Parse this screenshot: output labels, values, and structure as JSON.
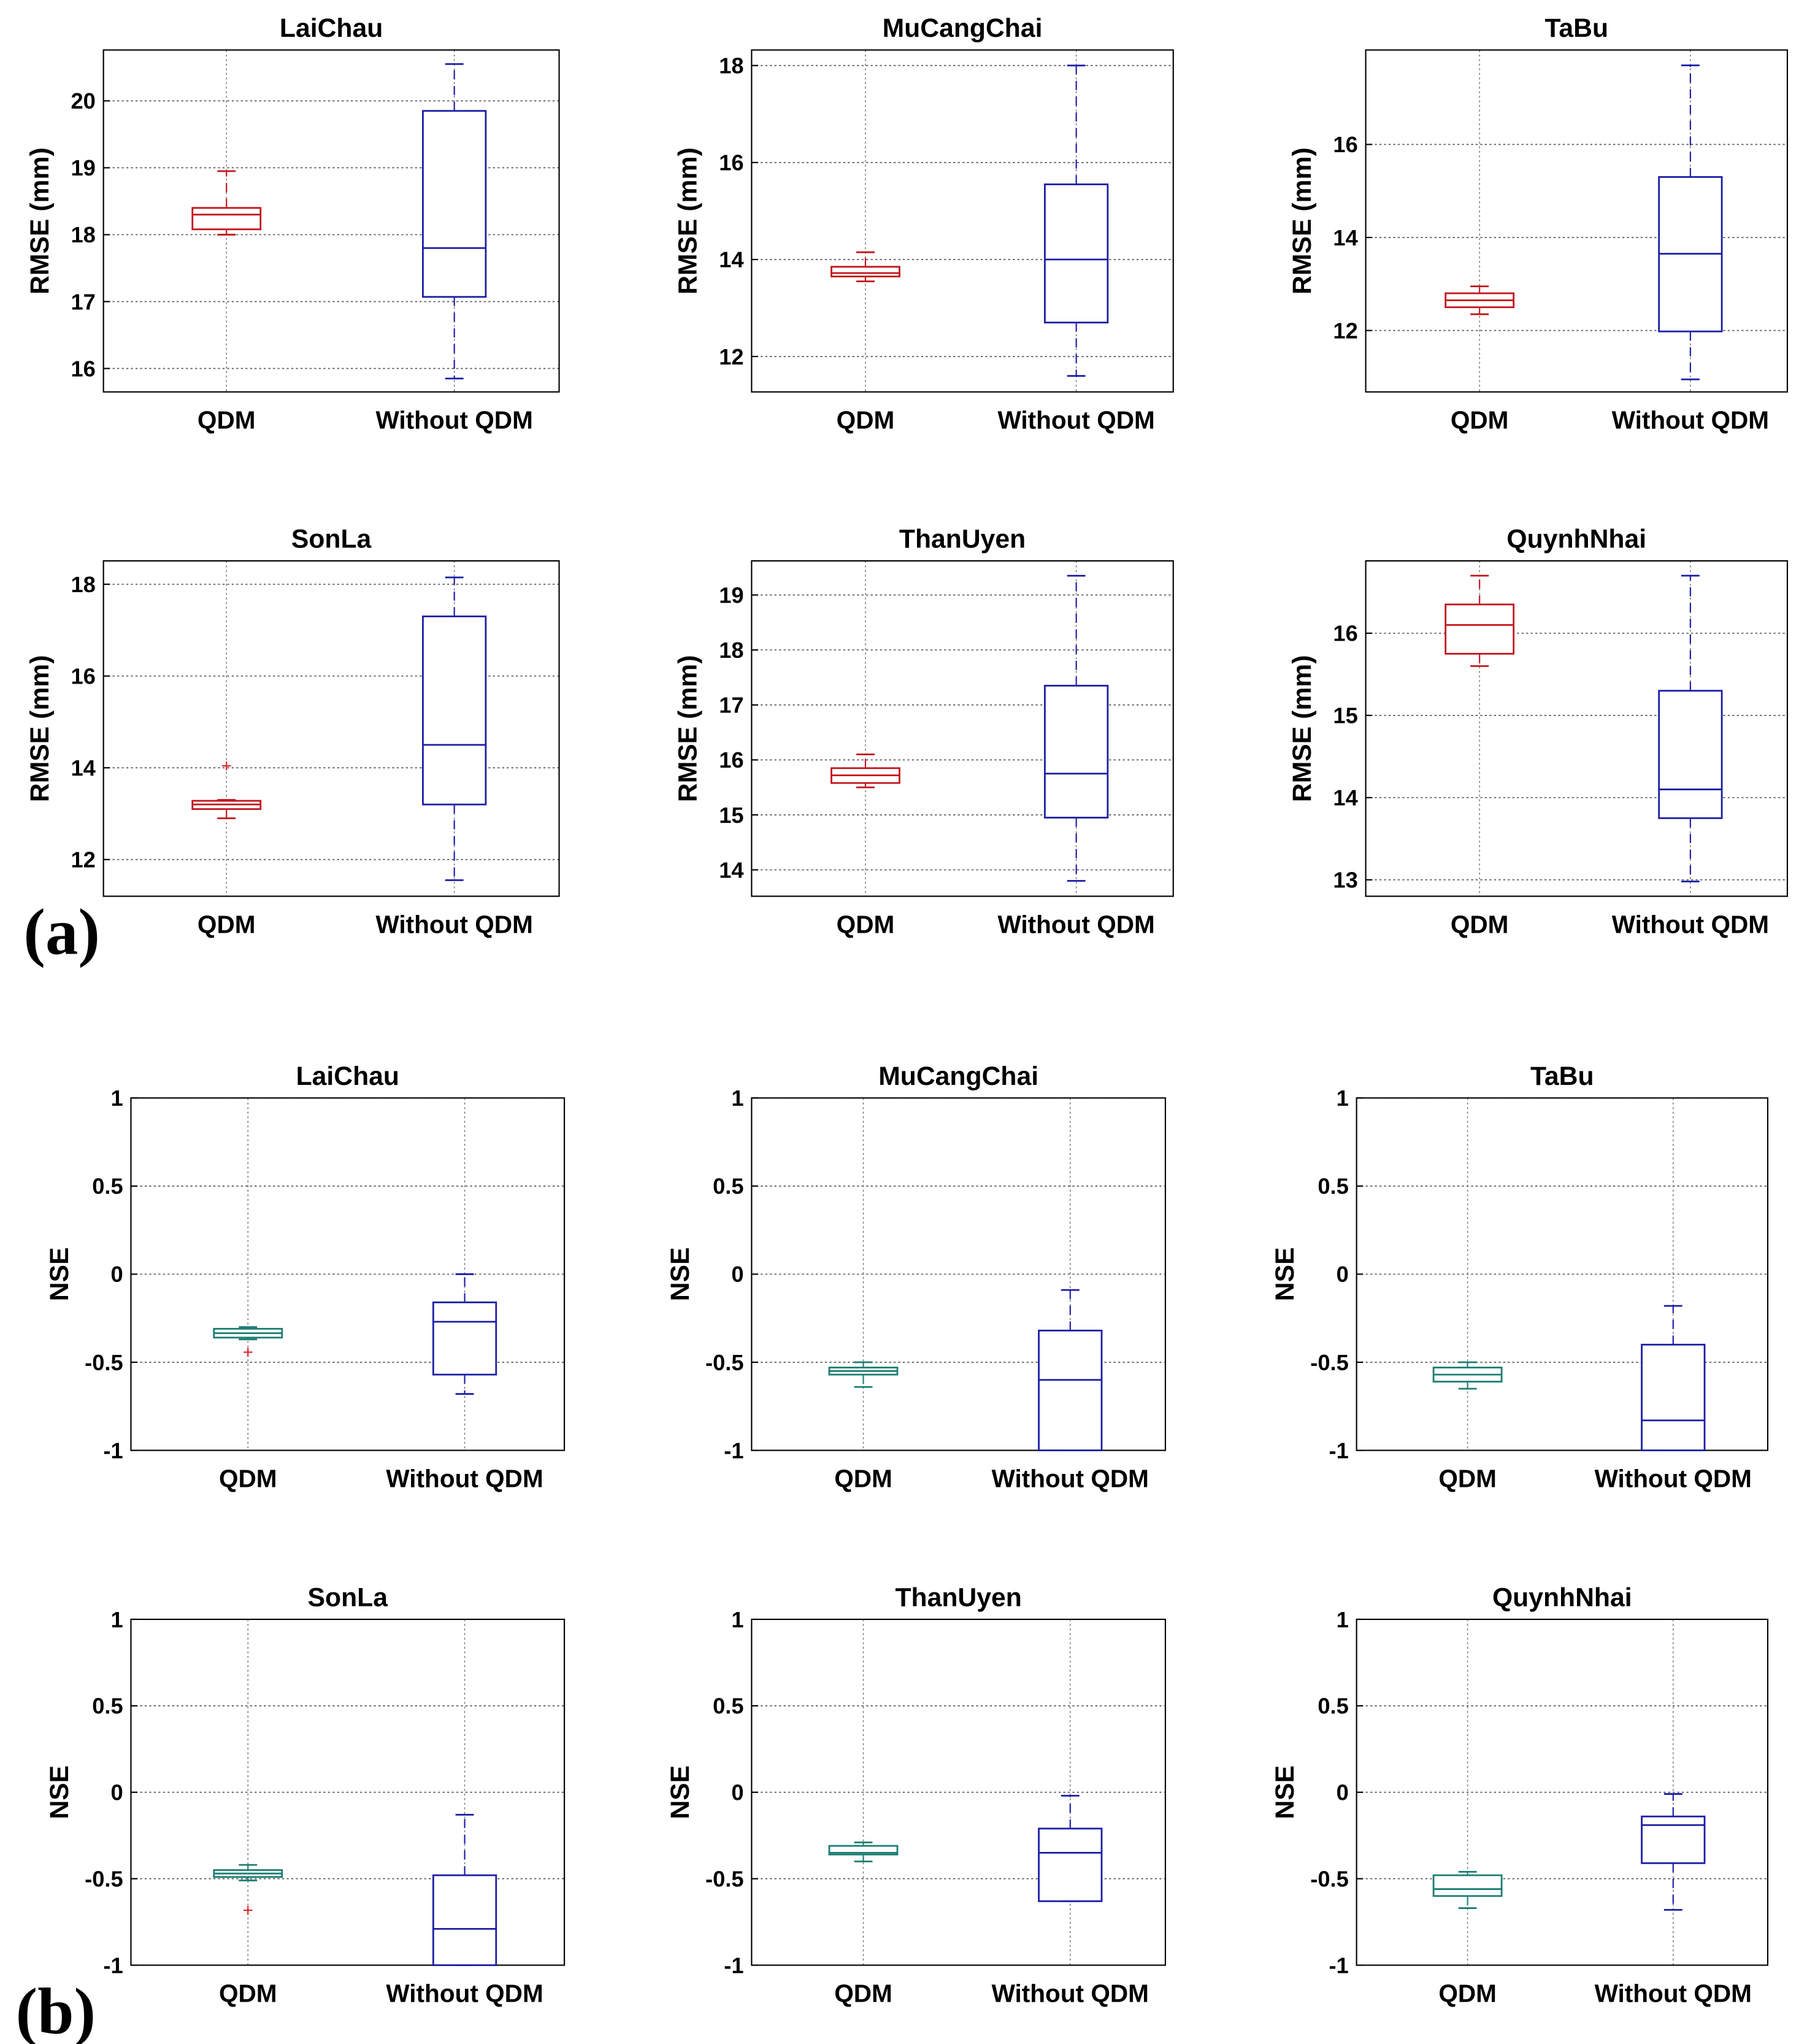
{
  "chart_data": [
    {
      "type": "box",
      "group": "a",
      "title": "LaiChau",
      "ylabel": "RMSE (mm)",
      "ylim": [
        15.65,
        20.76
      ],
      "yticks": [
        16,
        17,
        18,
        19,
        20
      ],
      "categories": [
        "QDM",
        "Without QDM"
      ],
      "series": [
        {
          "name": "QDM",
          "min": 18.0,
          "q1": 18.08,
          "median": 18.3,
          "q3": 18.4,
          "max": 18.95,
          "outliers": []
        },
        {
          "name": "Without QDM",
          "min": 15.85,
          "q1": 17.07,
          "median": 17.8,
          "q3": 19.85,
          "max": 20.55,
          "outliers": []
        }
      ]
    },
    {
      "type": "box",
      "group": "a",
      "title": "MuCangChai",
      "ylabel": "RMSE (mm)",
      "ylim": [
        11.27,
        18.32
      ],
      "yticks": [
        12,
        14,
        16,
        18
      ],
      "categories": [
        "QDM",
        "Without QDM"
      ],
      "series": [
        {
          "name": "QDM",
          "min": 13.55,
          "q1": 13.65,
          "median": 13.72,
          "q3": 13.85,
          "max": 14.15,
          "outliers": []
        },
        {
          "name": "Without QDM",
          "min": 11.6,
          "q1": 12.7,
          "median": 14.0,
          "q3": 15.55,
          "max": 18.0,
          "outliers": []
        }
      ]
    },
    {
      "type": "box",
      "group": "a",
      "title": "TaBu",
      "ylabel": "RMSE (mm)",
      "ylim": [
        10.68,
        18.03
      ],
      "yticks": [
        12,
        14,
        16
      ],
      "categories": [
        "QDM",
        "Without QDM"
      ],
      "series": [
        {
          "name": "QDM",
          "min": 12.35,
          "q1": 12.5,
          "median": 12.65,
          "q3": 12.8,
          "max": 12.95,
          "outliers": []
        },
        {
          "name": "Without QDM",
          "min": 10.95,
          "q1": 11.98,
          "median": 13.65,
          "q3": 15.3,
          "max": 17.7,
          "outliers": []
        }
      ]
    },
    {
      "type": "box",
      "group": "a",
      "title": "SonLa",
      "ylabel": "RMSE (mm)",
      "ylim": [
        11.2,
        18.51
      ],
      "yticks": [
        12,
        14,
        16,
        18
      ],
      "categories": [
        "QDM",
        "Without QDM"
      ],
      "series": [
        {
          "name": "QDM",
          "min": 12.9,
          "q1": 13.1,
          "median": 13.2,
          "q3": 13.28,
          "max": 13.3,
          "outliers": [
            14.05
          ]
        },
        {
          "name": "Without QDM",
          "min": 11.55,
          "q1": 13.2,
          "median": 14.5,
          "q3": 17.3,
          "max": 18.15,
          "outliers": []
        }
      ]
    },
    {
      "type": "box",
      "group": "a",
      "title": "ThanUyen",
      "ylabel": "RMSE (mm)",
      "ylim": [
        13.52,
        19.62
      ],
      "yticks": [
        14,
        15,
        16,
        17,
        18,
        19
      ],
      "categories": [
        "QDM",
        "Without QDM"
      ],
      "series": [
        {
          "name": "QDM",
          "min": 15.5,
          "q1": 15.58,
          "median": 15.72,
          "q3": 15.85,
          "max": 16.1,
          "outliers": []
        },
        {
          "name": "Without QDM",
          "min": 13.8,
          "q1": 14.95,
          "median": 15.75,
          "q3": 17.35,
          "max": 19.35,
          "outliers": []
        }
      ]
    },
    {
      "type": "box",
      "group": "a",
      "title": "QuynhNhai",
      "ylabel": "RMSE (mm)",
      "ylim": [
        12.8,
        16.88
      ],
      "yticks": [
        13,
        14,
        15,
        16
      ],
      "categories": [
        "QDM",
        "Without QDM"
      ],
      "series": [
        {
          "name": "QDM",
          "min": 15.6,
          "q1": 15.75,
          "median": 16.1,
          "q3": 16.35,
          "max": 16.7,
          "outliers": []
        },
        {
          "name": "Without QDM",
          "min": 12.98,
          "q1": 13.75,
          "median": 14.1,
          "q3": 15.3,
          "max": 16.7,
          "outliers": []
        }
      ]
    },
    {
      "type": "box",
      "group": "b",
      "title": "LaiChau",
      "ylabel": "NSE",
      "ylim": [
        -1,
        1
      ],
      "yticks": [
        -1,
        -0.5,
        0,
        0.5,
        1
      ],
      "categories": [
        "QDM",
        "Without QDM"
      ],
      "series": [
        {
          "name": "QDM",
          "min": -0.37,
          "q1": -0.36,
          "median": -0.335,
          "q3": -0.31,
          "max": -0.3,
          "outliers": [
            -0.44
          ]
        },
        {
          "name": "Without QDM",
          "min": -0.68,
          "q1": -0.57,
          "median": -0.27,
          "q3": -0.16,
          "max": 0.0,
          "outliers": []
        }
      ]
    },
    {
      "type": "box",
      "group": "b",
      "title": "MuCangChai",
      "ylabel": "NSE",
      "ylim": [
        -1,
        1
      ],
      "yticks": [
        -1,
        -0.5,
        0,
        0.5,
        1
      ],
      "categories": [
        "QDM",
        "Without QDM"
      ],
      "series": [
        {
          "name": "QDM",
          "min": -0.64,
          "q1": -0.57,
          "median": -0.55,
          "q3": -0.53,
          "max": -0.5,
          "outliers": []
        },
        {
          "name": "Without QDM",
          "min": -1.0,
          "q1": -1.0,
          "median": -0.6,
          "q3": -0.32,
          "max": -0.09,
          "outliers": []
        }
      ]
    },
    {
      "type": "box",
      "group": "b",
      "title": "TaBu",
      "ylabel": "NSE",
      "ylim": [
        -1,
        1
      ],
      "yticks": [
        -1,
        -0.5,
        0,
        0.5,
        1
      ],
      "categories": [
        "QDM",
        "Without QDM"
      ],
      "series": [
        {
          "name": "QDM",
          "min": -0.65,
          "q1": -0.61,
          "median": -0.57,
          "q3": -0.53,
          "max": -0.5,
          "outliers": []
        },
        {
          "name": "Without QDM",
          "min": -1.0,
          "q1": -1.0,
          "median": -0.83,
          "q3": -0.4,
          "max": -0.18,
          "outliers": []
        }
      ]
    },
    {
      "type": "box",
      "group": "b",
      "title": "SonLa",
      "ylabel": "NSE",
      "ylim": [
        -1,
        1
      ],
      "yticks": [
        -1,
        -0.5,
        0,
        0.5,
        1
      ],
      "categories": [
        "QDM",
        "Without QDM"
      ],
      "series": [
        {
          "name": "QDM",
          "min": -0.51,
          "q1": -0.49,
          "median": -0.47,
          "q3": -0.45,
          "max": -0.42,
          "outliers": [
            -0.68
          ]
        },
        {
          "name": "Without QDM",
          "min": -1.0,
          "q1": -1.0,
          "median": -0.79,
          "q3": -0.48,
          "max": -0.13,
          "outliers": []
        }
      ]
    },
    {
      "type": "box",
      "group": "b",
      "title": "ThanUyen",
      "ylabel": "NSE",
      "ylim": [
        -1,
        1
      ],
      "yticks": [
        -1,
        -0.5,
        0,
        0.5,
        1
      ],
      "categories": [
        "QDM",
        "Without QDM"
      ],
      "series": [
        {
          "name": "QDM",
          "min": -0.4,
          "q1": -0.36,
          "median": -0.35,
          "q3": -0.31,
          "max": -0.29,
          "outliers": []
        },
        {
          "name": "Without QDM",
          "min": -0.63,
          "q1": -0.63,
          "median": -0.35,
          "q3": -0.21,
          "max": -0.02,
          "outliers": []
        }
      ]
    },
    {
      "type": "box",
      "group": "b",
      "title": "QuynhNhai",
      "ylabel": "NSE",
      "ylim": [
        -1,
        1
      ],
      "yticks": [
        -1,
        -0.5,
        0,
        0.5,
        1
      ],
      "categories": [
        "QDM",
        "Without QDM"
      ],
      "series": [
        {
          "name": "QDM",
          "min": -0.67,
          "q1": -0.6,
          "median": -0.56,
          "q3": -0.48,
          "max": -0.46,
          "outliers": []
        },
        {
          "name": "Without QDM",
          "min": -0.68,
          "q1": -0.41,
          "median": -0.19,
          "q3": -0.14,
          "max": -0.01,
          "outliers": []
        }
      ]
    }
  ],
  "panel_labels": {
    "a": "(a)",
    "b": "(b)"
  },
  "colors": {
    "qdm_rmse": "#c0141c",
    "qdm_nse": "#1b7d72",
    "without_qdm": "#1c1ca6",
    "outlier": "#e0202a"
  }
}
